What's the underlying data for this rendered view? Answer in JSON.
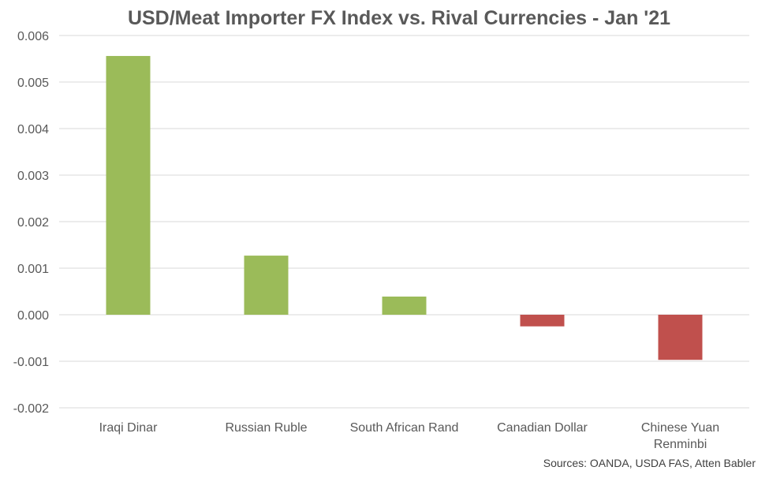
{
  "chart_data": {
    "type": "bar",
    "title": "USD/Meat Importer FX Index vs. Rival Currencies - Jan '21",
    "xlabel": "",
    "ylabel": "",
    "categories": [
      [
        "Iraqi Dinar"
      ],
      [
        "Russian Ruble"
      ],
      [
        "South African Rand"
      ],
      [
        "Canadian Dollar"
      ],
      [
        "Chinese Yuan",
        "Renminbi"
      ]
    ],
    "values": [
      0.00556,
      0.00127,
      0.00039,
      -0.00025,
      -0.00097
    ],
    "ylim": [
      -0.002,
      0.006
    ],
    "yticks": [
      "0.006",
      "0.005",
      "0.004",
      "0.003",
      "0.002",
      "0.001",
      "0.000",
      "-0.001",
      "-0.002"
    ],
    "ytick_values": [
      0.006,
      0.005,
      0.004,
      0.003,
      0.002,
      0.001,
      0.0,
      -0.001,
      -0.002
    ],
    "grid": true,
    "legend": "none",
    "colors": {
      "positive": "#9bbb59",
      "negative": "#c0504d",
      "grid": "#d9d9d9"
    },
    "source": "Sources: OANDA, USDA FAS, Atten Babler"
  }
}
